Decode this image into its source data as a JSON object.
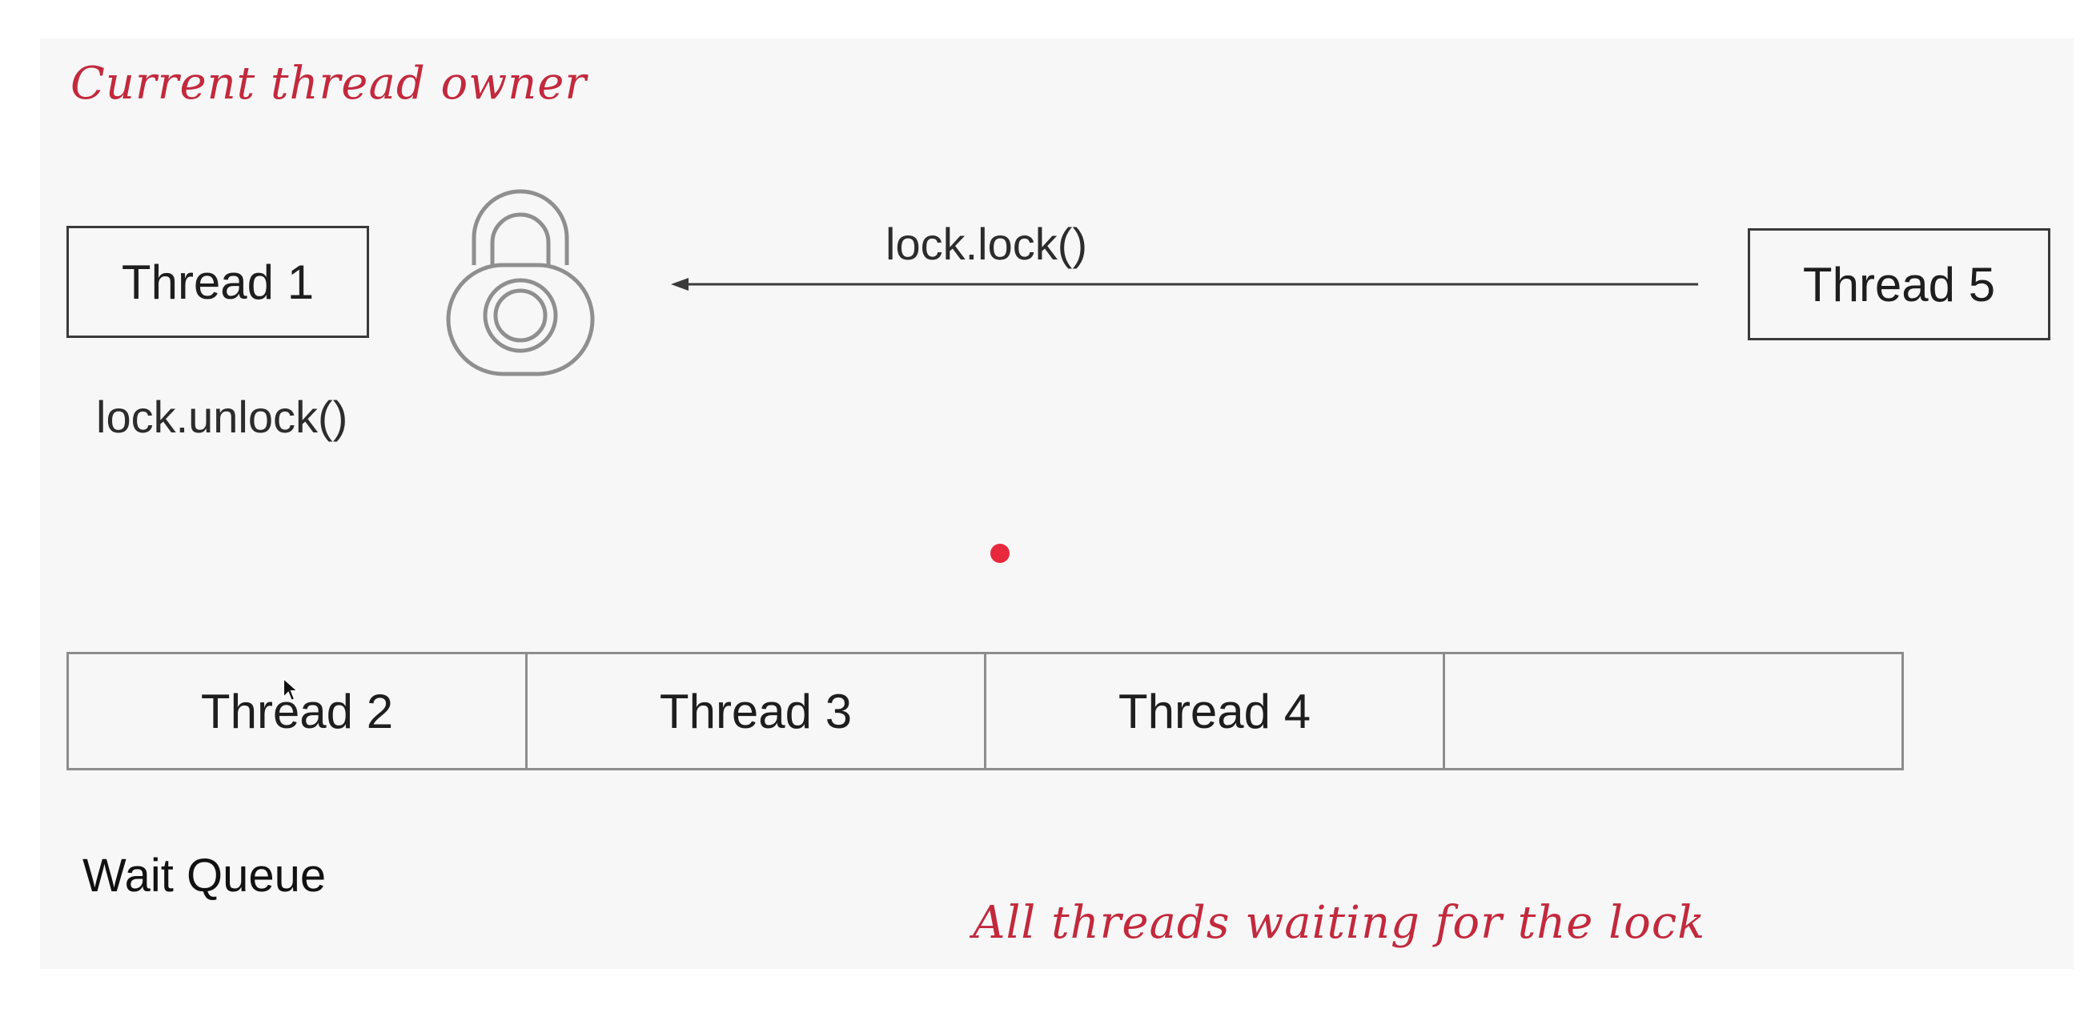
{
  "owner_note": "Current thread owner",
  "owner_thread": {
    "label": "Thread 1"
  },
  "unlock_call": "lock.unlock()",
  "lock_call": "lock.lock()",
  "requesting_thread": {
    "label": "Thread 5"
  },
  "lock_icon": "padlock-icon",
  "wait_queue": {
    "title": "Wait Queue",
    "slots": [
      {
        "label": "Thread 2"
      },
      {
        "label": "Thread 3"
      },
      {
        "label": "Thread 4"
      },
      {
        "label": ""
      }
    ]
  },
  "waiting_note": "All threads waiting for the lock",
  "colors": {
    "accent": "#c3293c",
    "pointer_dot": "#e8283c",
    "stroke": "#3a3a3a"
  }
}
